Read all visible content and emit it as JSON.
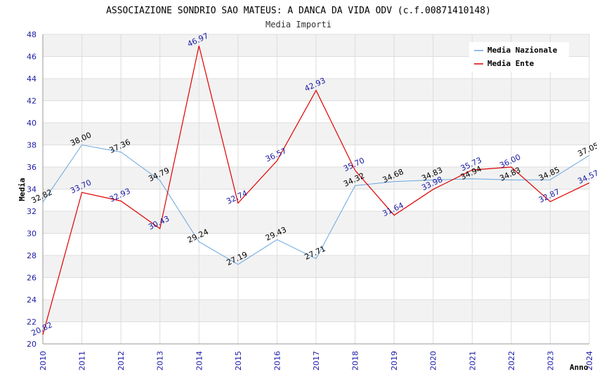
{
  "chart_data": {
    "type": "line",
    "title": "ASSOCIAZIONE SONDRIO SAO MATEUS: A DANCA DA VIDA ODV (c.f.00871410148)",
    "subtitle": "Media Importi",
    "xlabel": "Anno",
    "ylabel": "Media",
    "ylim": [
      20,
      48
    ],
    "ytick_step": 2,
    "grid": true,
    "legend_position": "top-right",
    "x": [
      "2010",
      "2011",
      "2012",
      "2013",
      "2014",
      "2015",
      "2016",
      "2017",
      "2018",
      "2019",
      "2020",
      "2021",
      "2022",
      "2023",
      "2024"
    ],
    "series": [
      {
        "name": "Media Nazionale",
        "color": "#6aa6e0",
        "values": [
          32.82,
          38.0,
          37.36,
          34.79,
          29.24,
          27.19,
          29.43,
          27.71,
          34.32,
          34.68,
          34.83,
          34.94,
          34.83,
          34.85,
          37.05
        ],
        "labels": [
          "32.82",
          "38.00",
          "37.36",
          "34.79",
          "29.24",
          "27.19",
          "29.43",
          "27.71",
          "34.32",
          "34.68",
          "34.83",
          "34.94",
          "34.83",
          "34.85",
          "37.05"
        ]
      },
      {
        "name": "Media Ente",
        "color": "#e00000",
        "values": [
          20.82,
          33.7,
          32.93,
          30.43,
          46.97,
          32.74,
          36.57,
          42.93,
          35.7,
          31.64,
          33.98,
          35.73,
          36.0,
          32.87,
          34.57
        ],
        "labels": [
          "20.82",
          "33.70",
          "32.93",
          "30.43",
          "46.97",
          "32.74",
          "36.57",
          "42.93",
          "35.70",
          "31.64",
          "33.98",
          "35.73",
          "36.00",
          "32.87",
          "34.57"
        ]
      }
    ]
  }
}
